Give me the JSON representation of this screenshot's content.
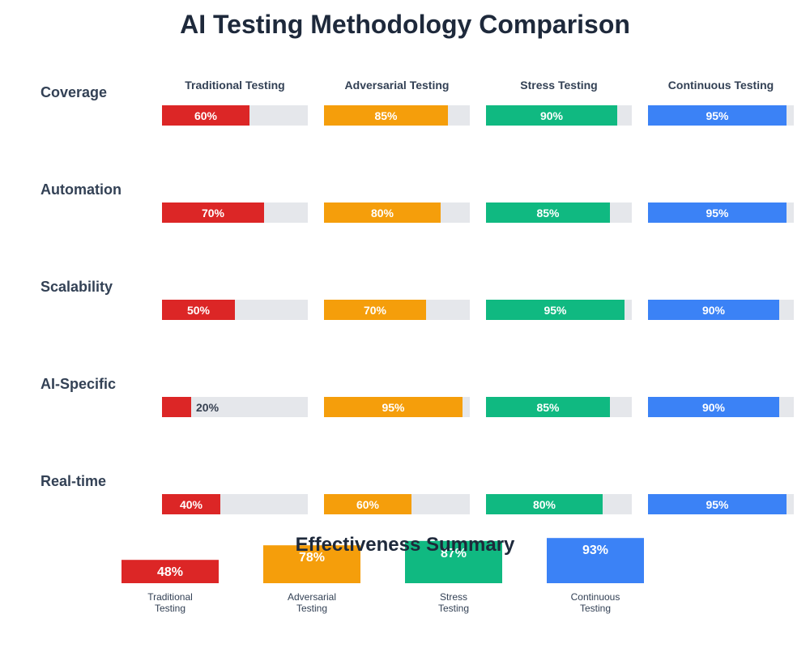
{
  "chart_data": [
    {
      "type": "bar",
      "title": "AI Testing Methodology Comparison",
      "categories": [
        "Coverage",
        "Automation",
        "Scalability",
        "AI-Specific",
        "Real-time"
      ],
      "xlim": [
        0,
        100
      ],
      "unit": "%",
      "colors": {
        "track": "#e5e7eb",
        "label_inside": "#ffffff",
        "label_outside": "#374151"
      },
      "series": [
        {
          "name": "Traditional Testing",
          "color": "#dc2626",
          "values": [
            60,
            70,
            50,
            20,
            40
          ]
        },
        {
          "name": "Adversarial Testing",
          "color": "#f59e0b",
          "values": [
            85,
            80,
            70,
            95,
            60
          ]
        },
        {
          "name": "Stress Testing",
          "color": "#10b981",
          "values": [
            90,
            85,
            95,
            85,
            80
          ]
        },
        {
          "name": "Continuous Testing",
          "color": "#3b82f6",
          "values": [
            95,
            95,
            90,
            90,
            95
          ]
        }
      ],
      "value_labels": [
        [
          "60%",
          "85%",
          "90%",
          "95%"
        ],
        [
          "70%",
          "80%",
          "85%",
          "95%"
        ],
        [
          "50%",
          "70%",
          "95%",
          "90%"
        ],
        [
          "20%",
          "95%",
          "85%",
          "90%"
        ],
        [
          "40%",
          "60%",
          "80%",
          "95%"
        ]
      ]
    },
    {
      "type": "bar",
      "title": "Effectiveness Summary",
      "categories": [
        [
          "Traditional",
          "Testing"
        ],
        [
          "Adversarial",
          "Testing"
        ],
        [
          "Stress",
          "Testing"
        ],
        [
          "Continuous",
          "Testing"
        ]
      ],
      "values": [
        48,
        78,
        87,
        93
      ],
      "value_labels": [
        "48%",
        "78%",
        "87%",
        "93%"
      ],
      "colors": [
        "#dc2626",
        "#f59e0b",
        "#10b981",
        "#3b82f6"
      ]
    }
  ],
  "text_color": "#1e293b",
  "label_color": "#334155"
}
